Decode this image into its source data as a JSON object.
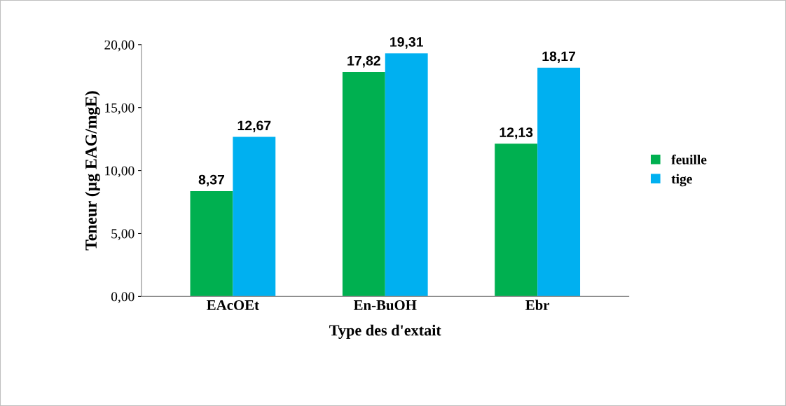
{
  "chart_data": {
    "type": "bar",
    "xlabel": "Type des d'extait",
    "ylabel": "Teneur (µg EAG/mgE)",
    "categories": [
      "EAcOEt",
      "En-BuOH",
      "Ebr"
    ],
    "series": [
      {
        "name": "feuille",
        "color": "#00b050",
        "values": [
          8.37,
          17.82,
          12.13
        ],
        "value_labels": [
          "8,37",
          "17,82",
          "12,13"
        ]
      },
      {
        "name": "tige",
        "color": "#00b0f0",
        "values": [
          12.67,
          19.31,
          18.17
        ],
        "value_labels": [
          "12,67",
          "19,31",
          "18,17"
        ]
      }
    ],
    "ylim": [
      0,
      20
    ],
    "yticks": [
      {
        "value": 0,
        "label": "0,00"
      },
      {
        "value": 5,
        "label": "5,00"
      },
      {
        "value": 10,
        "label": "10,00"
      },
      {
        "value": 15,
        "label": "15,00"
      },
      {
        "value": 20,
        "label": "20,00"
      }
    ],
    "grid": false,
    "legend": "right"
  }
}
